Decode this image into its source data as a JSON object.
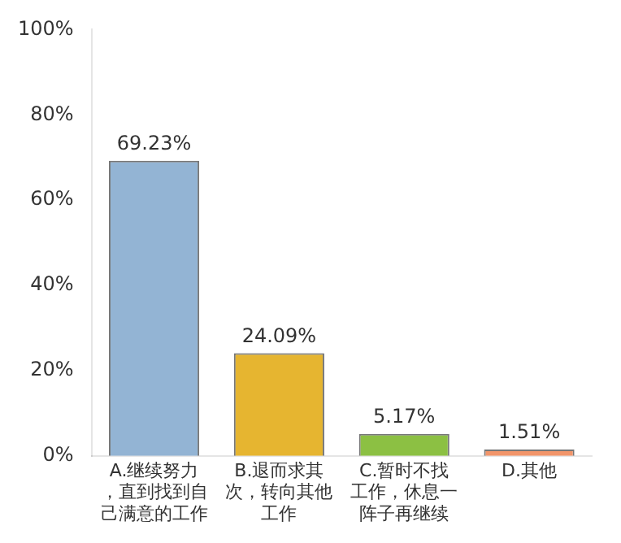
{
  "chart_data": {
    "type": "bar",
    "categories": [
      "A.继续努力，直到找到自己满意的工作",
      "B.退而求其次，转向其他工作",
      "C.暂时不找工作，休息一阵子再继续",
      "D.其他"
    ],
    "values": [
      69.23,
      24.09,
      5.17,
      1.51
    ],
    "colors": [
      "#93b4d4",
      "#e6b530",
      "#8cc043",
      "#f2956a"
    ],
    "value_labels": [
      "69.23%",
      "24.09%",
      "5.17%",
      "1.51%"
    ],
    "ylim": [
      0,
      100
    ],
    "yticks": [
      {
        "value": 0,
        "label": "0%"
      },
      {
        "value": 20,
        "label": "20%"
      },
      {
        "value": 40,
        "label": "40%"
      },
      {
        "value": 60,
        "label": "60%"
      },
      {
        "value": 80,
        "label": "80%"
      },
      {
        "value": 100,
        "label": "100%"
      }
    ],
    "grid": false
  }
}
